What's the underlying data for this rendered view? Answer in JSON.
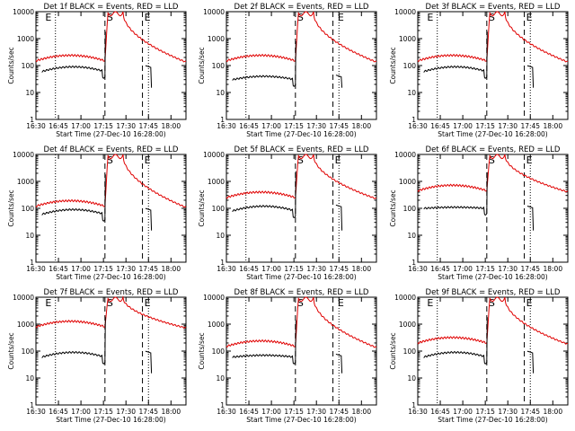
{
  "chart_data": {
    "type": "line",
    "y_scale": "log",
    "ylim": [
      1,
      10000
    ],
    "ylabel": "Counts/sec",
    "y_tick_labels": [
      "1",
      "10",
      "100",
      "1000",
      "10000"
    ],
    "x_tick_labels": [
      "16:30",
      "16:45",
      "17:00",
      "17:15",
      "17:30",
      "17:45",
      "18:00"
    ],
    "xlabel": "Start Time (27-Dec-10 16:28:00)",
    "series_colors": {
      "events": "#000000",
      "lld": "#e00000"
    },
    "panels": [
      {
        "title": "Det 1f BLACK = Events, RED = LLD",
        "markers": [
          {
            "label": "E",
            "time": "16:35"
          },
          {
            "label": "S",
            "time": "17:16"
          },
          {
            "label": "E",
            "time": "17:41"
          }
        ],
        "lld_base": 150,
        "lld_peak": 10000,
        "events_base": 60,
        "events_peak": 90
      },
      {
        "title": "Det 2f BLACK = Events, RED = LLD",
        "markers": [
          {
            "label": "S",
            "time": "17:16"
          },
          {
            "label": "E",
            "time": "17:43"
          }
        ],
        "lld_base": 150,
        "lld_peak": 10000,
        "events_base": 30,
        "events_peak": 40
      },
      {
        "title": "Det 3f BLACK = Events, RED = LLD",
        "markers": [
          {
            "label": "E",
            "time": "16:35"
          },
          {
            "label": "S",
            "time": "17:16"
          },
          {
            "label": "E",
            "time": "17:41"
          }
        ],
        "lld_base": 150,
        "lld_peak": 10000,
        "events_base": 60,
        "events_peak": 90
      },
      {
        "title": "Det 4f BLACK = Events, RED = LLD",
        "markers": [
          {
            "label": "S",
            "time": "17:16"
          },
          {
            "label": "E",
            "time": "17:41"
          }
        ],
        "lld_base": 120,
        "lld_peak": 10000,
        "events_base": 60,
        "events_peak": 90
      },
      {
        "title": "Det 5f BLACK = Events, RED = LLD",
        "markers": [
          {
            "label": "S",
            "time": "17:16"
          },
          {
            "label": "E",
            "time": "17:41"
          }
        ],
        "lld_base": 250,
        "lld_peak": 10000,
        "events_base": 80,
        "events_peak": 120
      },
      {
        "title": "Det 6f BLACK = Events, RED = LLD",
        "markers": [
          {
            "label": "S",
            "time": "17:16"
          },
          {
            "label": "E",
            "time": "17:41"
          }
        ],
        "lld_base": 450,
        "lld_peak": 10000,
        "events_base": 100,
        "events_peak": 110
      },
      {
        "title": "Det 7f BLACK = Events, RED = LLD",
        "markers": [
          {
            "label": "E",
            "time": "16:35"
          },
          {
            "label": "S",
            "time": "17:16"
          },
          {
            "label": "E",
            "time": "17:41"
          }
        ],
        "lld_base": 800,
        "lld_peak": 10000,
        "events_base": 60,
        "events_peak": 90
      },
      {
        "title": "Det 8f BLACK = Events, RED = LLD",
        "markers": [
          {
            "label": "S",
            "time": "17:16"
          },
          {
            "label": "E",
            "time": "17:43"
          }
        ],
        "lld_base": 150,
        "lld_peak": 10000,
        "events_base": 60,
        "events_peak": 70
      },
      {
        "title": "Det 9f BLACK = Events, RED = LLD",
        "markers": [
          {
            "label": "E",
            "time": "16:35"
          },
          {
            "label": "S",
            "time": "17:16"
          },
          {
            "label": "E",
            "time": "17:41"
          }
        ],
        "lld_base": 200,
        "lld_peak": 10000,
        "events_base": 60,
        "events_peak": 90
      }
    ]
  }
}
